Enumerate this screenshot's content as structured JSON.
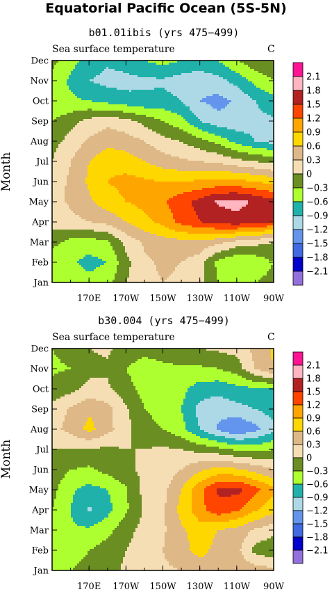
{
  "title": "Equatorial Pacific Ocean (5S-5N)",
  "chart_data": [
    {
      "type": "heatmap",
      "subtitle": "b01.01ibis (yrs 475−499)",
      "variable": "Sea surface temperature",
      "units": "C",
      "ylabel": "Month",
      "x_ticks": [
        "170E",
        "170W",
        "150W",
        "130W",
        "110W",
        "90W"
      ],
      "x_tick_lon": [
        170,
        190,
        210,
        230,
        250,
        270
      ],
      "xlim": [
        150,
        270
      ],
      "y_ticks": [
        "Jan",
        "Feb",
        "Mar",
        "Apr",
        "May",
        "Jun",
        "Jul",
        "Aug",
        "Sep",
        "Oct",
        "Nov",
        "Dec"
      ],
      "levels": [
        -2.1,
        -1.8,
        -1.5,
        -1.2,
        -0.9,
        -0.6,
        -0.3,
        0,
        0.3,
        0.6,
        0.9,
        1.2,
        1.5,
        1.8,
        2.1
      ],
      "x": [
        150,
        160,
        170,
        180,
        190,
        200,
        210,
        220,
        230,
        240,
        250,
        260,
        270
      ],
      "values": [
        [
          -0.5,
          -0.4,
          -0.5,
          -0.4,
          0.0,
          0.2,
          0.3,
          0.25,
          0.1,
          -0.3,
          -0.45,
          -0.3,
          -0.2
        ],
        [
          -0.5,
          -0.55,
          -0.7,
          -0.6,
          -0.1,
          0.25,
          0.35,
          0.3,
          0.15,
          -0.4,
          -0.6,
          -0.5,
          -0.3
        ],
        [
          -0.2,
          -0.4,
          -0.45,
          -0.35,
          0.1,
          0.35,
          0.45,
          0.5,
          0.5,
          0.4,
          0.2,
          0.1,
          0.0
        ],
        [
          0.1,
          0.2,
          0.3,
          0.4,
          0.6,
          0.8,
          1.0,
          1.3,
          1.5,
          1.6,
          1.7,
          1.6,
          1.5
        ],
        [
          0.2,
          0.35,
          0.55,
          0.75,
          0.9,
          1.0,
          1.15,
          1.4,
          1.6,
          1.85,
          1.9,
          1.75,
          1.6
        ],
        [
          0.15,
          0.35,
          0.65,
          0.9,
          1.0,
          0.95,
          0.9,
          0.9,
          0.95,
          1.0,
          1.0,
          0.9,
          0.8
        ],
        [
          0.0,
          0.3,
          0.6,
          0.8,
          0.75,
          0.6,
          0.45,
          0.35,
          0.3,
          0.25,
          0.1,
          0.0,
          -0.1
        ],
        [
          -0.1,
          0.1,
          0.35,
          0.5,
          0.45,
          0.3,
          0.1,
          0.0,
          -0.2,
          -0.4,
          -0.7,
          -0.9,
          -1.0
        ],
        [
          -0.3,
          -0.1,
          0.1,
          0.2,
          0.1,
          -0.1,
          -0.3,
          -0.5,
          -0.9,
          -1.1,
          -1.1,
          -1.0,
          -0.95
        ],
        [
          -0.6,
          -0.55,
          -0.6,
          -0.7,
          -0.8,
          -0.85,
          -0.8,
          -0.9,
          -1.2,
          -1.3,
          -1.15,
          -0.9,
          -0.7
        ],
        [
          -0.4,
          -0.65,
          -0.9,
          -1.0,
          -1.0,
          -0.95,
          -0.95,
          -1.05,
          -1.1,
          -1.0,
          -0.8,
          -0.5,
          -0.3
        ],
        [
          -0.2,
          -0.5,
          -0.7,
          -0.85,
          -0.75,
          -0.6,
          -0.5,
          -0.6,
          -0.7,
          -0.6,
          -0.3,
          -0.1,
          0.0
        ]
      ]
    },
    {
      "type": "heatmap",
      "subtitle": "b30.004 (yrs 475−499)",
      "variable": "Sea surface temperature",
      "units": "C",
      "ylabel": "Month",
      "x_ticks": [
        "170E",
        "170W",
        "150W",
        "130W",
        "110W",
        "90W"
      ],
      "x_tick_lon": [
        170,
        190,
        210,
        230,
        250,
        270
      ],
      "xlim": [
        150,
        270
      ],
      "y_ticks": [
        "Jan",
        "Feb",
        "Mar",
        "Apr",
        "May",
        "Jun",
        "Jul",
        "Aug",
        "Sep",
        "Oct",
        "Nov",
        "Dec"
      ],
      "levels": [
        -2.1,
        -1.8,
        -1.5,
        -1.2,
        -0.9,
        -0.6,
        -0.3,
        0,
        0.3,
        0.6,
        0.9,
        1.2,
        1.5,
        1.8,
        2.1
      ],
      "x": [
        150,
        160,
        170,
        180,
        190,
        200,
        210,
        220,
        230,
        240,
        250,
        260,
        270
      ],
      "values": [
        [
          -0.35,
          -0.3,
          -0.2,
          -0.1,
          0.05,
          0.2,
          0.25,
          0.3,
          0.45,
          0.5,
          0.5,
          0.45,
          0.4
        ],
        [
          -0.4,
          -0.45,
          -0.3,
          -0.15,
          0.0,
          0.15,
          0.3,
          0.5,
          0.7,
          0.5,
          0.4,
          -0.1,
          -0.25
        ],
        [
          -0.35,
          -0.55,
          -0.55,
          -0.4,
          -0.1,
          0.1,
          0.25,
          0.55,
          0.75,
          0.6,
          0.5,
          0.25,
          0.1
        ],
        [
          -0.3,
          -0.6,
          -0.95,
          -0.7,
          -0.35,
          0.05,
          0.25,
          0.7,
          1.1,
          1.4,
          1.25,
          0.95,
          0.7
        ],
        [
          -0.2,
          -0.55,
          -0.7,
          -0.6,
          -0.35,
          0.1,
          0.2,
          0.6,
          1.1,
          1.55,
          1.6,
          1.3,
          0.95
        ],
        [
          -0.1,
          -0.3,
          -0.35,
          -0.2,
          -0.05,
          0.05,
          0.1,
          0.3,
          0.55,
          0.7,
          0.65,
          0.5,
          0.3
        ],
        [
          0.0,
          0.0,
          -0.05,
          -0.05,
          0.0,
          0.0,
          0.05,
          0.0,
          -0.1,
          -0.2,
          -0.35,
          -0.4,
          -0.3
        ],
        [
          0.2,
          0.4,
          0.7,
          0.4,
          0.1,
          -0.2,
          -0.3,
          -0.5,
          -0.9,
          -1.25,
          -1.5,
          -1.3,
          -1.0
        ],
        [
          0.1,
          0.35,
          0.55,
          0.4,
          0.05,
          -0.3,
          -0.4,
          -0.6,
          -1.0,
          -1.1,
          -1.0,
          -0.9,
          -0.75
        ],
        [
          -0.2,
          -0.1,
          0.1,
          0.05,
          -0.2,
          -0.4,
          -0.45,
          -0.5,
          -0.75,
          -0.8,
          -0.7,
          -0.65,
          -0.6
        ],
        [
          -0.35,
          -0.3,
          -0.1,
          -0.05,
          -0.3,
          -0.45,
          -0.4,
          -0.35,
          -0.35,
          -0.3,
          -0.15,
          0.3,
          0.6
        ],
        [
          -0.3,
          -0.2,
          0.0,
          0.05,
          -0.1,
          -0.2,
          -0.1,
          0.0,
          0.0,
          0.05,
          0.1,
          0.4,
          0.65
        ]
      ]
    }
  ],
  "colorbar": {
    "labels": [
      "2.1",
      "1.8",
      "1.5",
      "1.2",
      "0.9",
      "0.6",
      "0.3",
      "0",
      "−0.3",
      "−0.6",
      "−0.9",
      "−1.2",
      "−1.5",
      "−1.8",
      "−2.1"
    ],
    "colors_top_to_bottom": [
      "#ff1493",
      "#ffb6c1",
      "#b22222",
      "#ff4500",
      "#ffa500",
      "#ffd700",
      "#deb887",
      "#f5deb3",
      "#6b8e23",
      "#adff2f",
      "#20b2aa",
      "#add8e6",
      "#6495ed",
      "#4169e1",
      "#0000cd",
      "#9370db"
    ]
  }
}
